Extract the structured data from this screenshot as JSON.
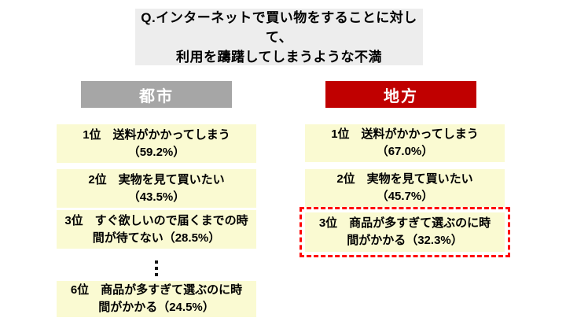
{
  "title": {
    "line1": "Q.インターネットで買い物をすることに対して、",
    "line2": "利用を躊躇してしまうような不満"
  },
  "columns": {
    "urban": {
      "header": "都市",
      "items": [
        {
          "rank": "1位",
          "line1": "1位　送料がかかってしまう",
          "line2": "（59.2%）"
        },
        {
          "rank": "2位",
          "line1": "2位　実物を見て買いたい",
          "line2": "（43.5%）"
        },
        {
          "rank": "3位",
          "line1": "3位　すぐ欲しいので届くまでの時",
          "line2": "間が待てない（28.5%）"
        },
        {
          "rank": "6位",
          "line1": "6位　商品が多すぎて選ぶのに時",
          "line2": "間がかかる（24.5%）"
        }
      ]
    },
    "rural": {
      "header": "地方",
      "items": [
        {
          "rank": "1位",
          "line1": "1位　送料がかかってしまう",
          "line2": "（67.0%）"
        },
        {
          "rank": "2位",
          "line1": "2位　実物を見て買いたい",
          "line2": "（45.7%）"
        },
        {
          "rank": "3位",
          "line1": "3位　商品が多すぎて選ぶのに時",
          "line2": "間がかかる（32.3%）"
        }
      ]
    }
  },
  "icons": {
    "ellipsis": "vertical-ellipsis"
  },
  "colors": {
    "urban_header_bg": "#A6A6A6",
    "rural_header_bg": "#C00000",
    "header_text": "#FFFFFF",
    "item_bg": "#FAFAD2",
    "highlight_border": "#FF0000",
    "title_bg": "#EDEDED",
    "text": "#000000"
  }
}
